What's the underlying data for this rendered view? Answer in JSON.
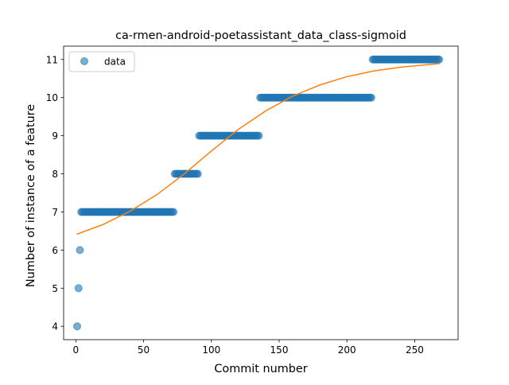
{
  "chart_data": {
    "type": "scatter",
    "title": "ca-rmen-android-poetassistant_data_class-sigmoid",
    "xlabel": "Commit number",
    "ylabel": "Number of instance of a feature",
    "xlim": [
      -9,
      282
    ],
    "ylim": [
      3.65,
      11.35
    ],
    "xticks": [
      0,
      50,
      100,
      150,
      200,
      250
    ],
    "yticks": [
      4,
      5,
      6,
      7,
      8,
      9,
      10,
      11
    ],
    "grid": false,
    "legend": {
      "placement": "top-left",
      "entries": [
        "data"
      ]
    },
    "colors": {
      "data": "#1f77b4",
      "fit": "#ff7f0e"
    },
    "series": [
      {
        "name": "data",
        "kind": "points",
        "runs": [
          {
            "x_start": 1,
            "x_end": 1,
            "y": 4
          },
          {
            "x_start": 2,
            "x_end": 2,
            "y": 5
          },
          {
            "x_start": 3,
            "x_end": 3,
            "y": 6
          },
          {
            "x_start": 4,
            "x_end": 72,
            "y": 7
          },
          {
            "x_start": 73,
            "x_end": 90,
            "y": 8
          },
          {
            "x_start": 91,
            "x_end": 135,
            "y": 9
          },
          {
            "x_start": 136,
            "x_end": 218,
            "y": 10
          },
          {
            "x_start": 219,
            "x_end": 268,
            "y": 11
          }
        ]
      },
      {
        "kind": "line",
        "x": [
          1,
          20,
          40,
          60,
          80,
          100,
          120,
          140,
          160,
          180,
          200,
          220,
          240,
          268
        ],
        "y": [
          6.42,
          6.67,
          7.02,
          7.46,
          8.0,
          8.6,
          9.17,
          9.65,
          10.04,
          10.33,
          10.55,
          10.7,
          10.8,
          10.89
        ]
      }
    ]
  }
}
